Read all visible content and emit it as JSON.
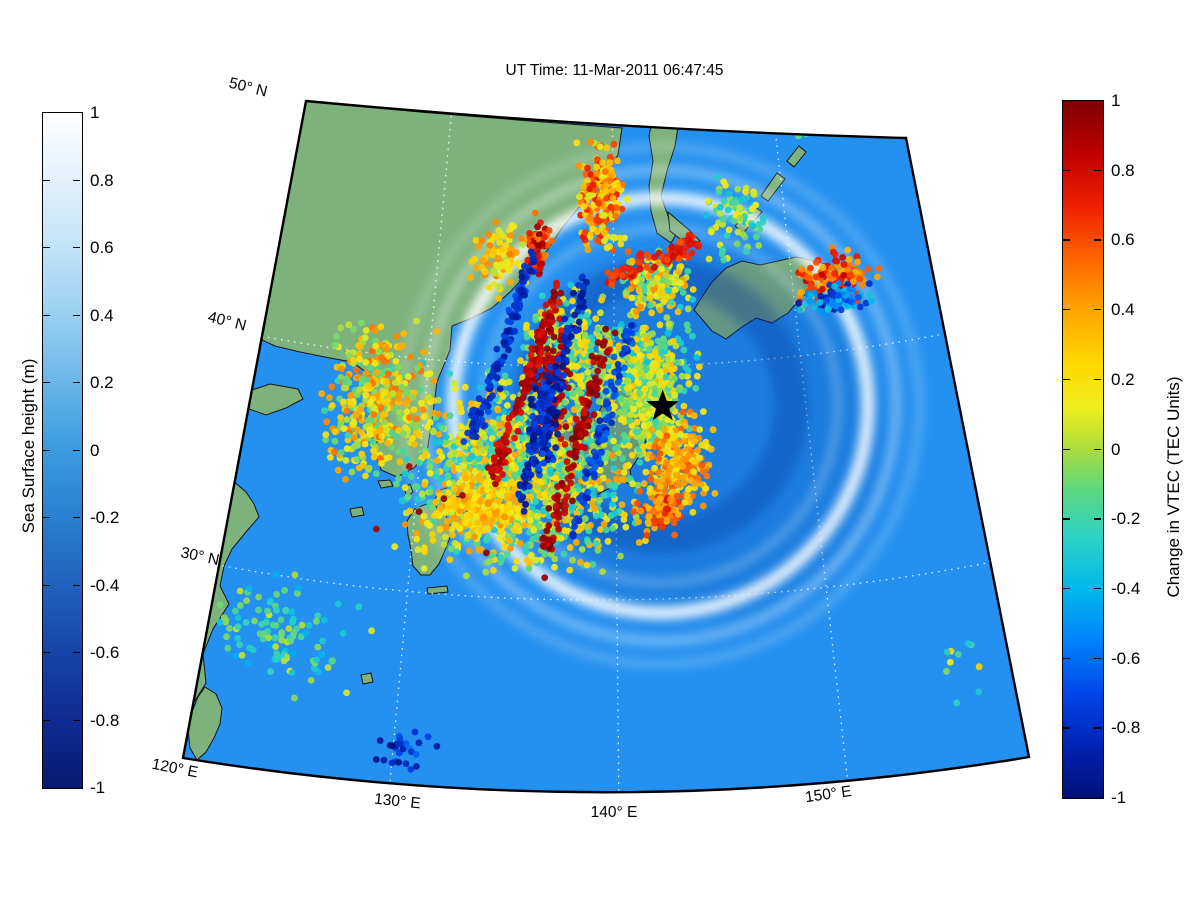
{
  "title": "UT Time: 11-Mar-2011 06:47:45",
  "colorbar_left": {
    "label": "Sea Surface height (m)",
    "tick_labels": [
      "1",
      "0.8",
      "0.6",
      "0.4",
      "0.2",
      "0",
      "-0.2",
      "-0.4",
      "-0.6",
      "-0.8",
      "-1"
    ],
    "range": [
      -1,
      1
    ],
    "colormap": "white-to-darkblue"
  },
  "colorbar_right": {
    "label": "Change in VTEC (TEC Units)",
    "tick_labels": [
      "1",
      "0.8",
      "0.6",
      "0.4",
      "0.2",
      "0",
      "-0.2",
      "-0.4",
      "-0.6",
      "-0.8",
      "-1"
    ],
    "range": [
      -1,
      1
    ],
    "colormap": "jet"
  },
  "map_axis_labels": {
    "lat": [
      "50° N",
      "40° N",
      "30° N"
    ],
    "lon": [
      "120° E",
      "130° E",
      "140° E",
      "150° E"
    ]
  },
  "chart_data": {
    "type": "scatter",
    "title": "UT Time: 11-Mar-2011 06:47:45",
    "description": "Map of Japan region: colored dots show change in VTEC (TEC units, jet colorbar); ocean shading shows sea surface height (m, blue colorbar) with an expanding circular tsunami wavefront; black star marks the epicenter offshore Tohoku.",
    "map_extent": {
      "lon": [
        120,
        157
      ],
      "lat": [
        21.7,
        50.3
      ]
    },
    "graticule": {
      "meridians_deg_e": [
        130,
        140,
        150
      ],
      "parallels_deg_n": [
        30,
        40
      ],
      "style": "dotted-white"
    },
    "epicenter": {
      "lon": 142.4,
      "lat": 38.3,
      "marker": "black-star"
    },
    "tsunami_rings": [
      {
        "radius_deg": 8.9,
        "type": "crest",
        "intensity": 0.9
      },
      {
        "radius_deg": 7.6,
        "type": "crest",
        "intensity": 0.3
      },
      {
        "radius_deg": 10.1,
        "type": "crest",
        "intensity": 0.38
      },
      {
        "radius_deg": 11.1,
        "type": "crest",
        "intensity": 0.26
      },
      {
        "radius_deg": 5.6,
        "type": "trough",
        "intensity": 0.3
      }
    ],
    "scatter_clusters": [
      {
        "name": "sakhalin-coast",
        "lon": 139.3,
        "lat": 47.3,
        "lon_spread": 1.1,
        "lat_spread": 1.7,
        "count": 240,
        "vtec": [
          0.05,
          0.75
        ]
      },
      {
        "name": "primorye-red",
        "lon": 135.6,
        "lat": 45.1,
        "lon_spread": 0.55,
        "lat_spread": 0.95,
        "count": 80,
        "vtec": [
          0.45,
          1.0
        ]
      },
      {
        "name": "ne-china-green",
        "lon": 133.5,
        "lat": 44.5,
        "lon_spread": 1.2,
        "lat_spread": 1.1,
        "count": 90,
        "vtec": [
          0.0,
          0.5
        ]
      },
      {
        "name": "japan-main-cloud",
        "lon": 135.3,
        "lat": 35.3,
        "lon_spread": 4.3,
        "lat_spread": 3.0,
        "count": 1500,
        "vtec": [
          -0.35,
          0.45
        ]
      },
      {
        "name": "korea",
        "lon": 127.5,
        "lat": 38.0,
        "lon_spread": 2.1,
        "lat_spread": 2.5,
        "count": 430,
        "vtec": [
          -0.2,
          0.55
        ]
      },
      {
        "name": "sea-of-japan-fill",
        "lon": 137.5,
        "lat": 40.5,
        "lon_spread": 2.0,
        "lat_spread": 2.0,
        "count": 340,
        "vtec": [
          -0.3,
          0.3
        ]
      },
      {
        "name": "tohoku-offshore",
        "lon": 141.5,
        "lat": 40.0,
        "lon_spread": 2.1,
        "lat_spread": 1.7,
        "count": 420,
        "vtec": [
          -0.35,
          0.35
        ]
      },
      {
        "name": "epicentral",
        "lon": 141.8,
        "lat": 37.8,
        "lon_spread": 1.2,
        "lat_spread": 1.2,
        "count": 210,
        "vtec": [
          -0.25,
          0.25
        ]
      },
      {
        "name": "east-yellow-arc",
        "lon": 143.2,
        "lat": 35.8,
        "lon_spread": 1.4,
        "lat_spread": 1.5,
        "count": 270,
        "vtec": [
          0.1,
          0.6
        ]
      },
      {
        "name": "boso-orange",
        "lon": 142.2,
        "lat": 33.8,
        "lon_spread": 0.9,
        "lat_spread": 0.8,
        "count": 90,
        "vtec": [
          0.3,
          0.75
        ]
      },
      {
        "name": "sw-honshu-yellow",
        "lon": 133.0,
        "lat": 33.8,
        "lon_spread": 1.8,
        "lat_spread": 1.0,
        "count": 240,
        "vtec": [
          0.1,
          0.45
        ]
      },
      {
        "name": "kuril-band-warm",
        "lon": 152.5,
        "lat": 43.1,
        "lon_spread": 1.9,
        "lat_spread": 0.8,
        "count": 130,
        "vtec": [
          0.3,
          0.85
        ]
      },
      {
        "name": "kuril-band-cool",
        "lon": 152.3,
        "lat": 42.2,
        "lon_spread": 1.6,
        "lat_spread": 0.55,
        "count": 85,
        "vtec": [
          -0.9,
          -0.3
        ]
      },
      {
        "name": "hokkaido-mixed",
        "lon": 142.5,
        "lat": 43.5,
        "lon_spread": 1.5,
        "lat_spread": 0.95,
        "count": 190,
        "vtec": [
          -0.3,
          0.5
        ]
      },
      {
        "name": "okhotsk-cyan",
        "lon": 147.0,
        "lat": 46.3,
        "lon_spread": 1.5,
        "lat_spread": 1.5,
        "count": 85,
        "vtec": [
          -0.35,
          0.2
        ]
      },
      {
        "name": "top-ne-cyan",
        "lon": 152.0,
        "lat": 49.8,
        "lon_spread": 1.0,
        "lat_spread": 0.45,
        "count": 20,
        "vtec": [
          -0.35,
          0.15
        ]
      },
      {
        "name": "ecs-cyan-trail",
        "lon": 124.5,
        "lat": 27.5,
        "lon_spread": 2.4,
        "lat_spread": 1.8,
        "count": 110,
        "vtec": [
          -0.45,
          0.1
        ]
      },
      {
        "name": "deep-blue-trail",
        "lon": 130.6,
        "lat": 23.2,
        "lon_spread": 1.0,
        "lat_spread": 0.7,
        "count": 28,
        "vtec": [
          -1.0,
          -0.6
        ]
      },
      {
        "name": "far-se-strays",
        "lon": 156.0,
        "lat": 26.0,
        "lon_spread": 1.2,
        "lat_spread": 1.6,
        "count": 10,
        "vtec": [
          -0.4,
          0.5
        ]
      },
      {
        "name": "maroon-core",
        "lon": 136.6,
        "lat": 39.3,
        "lon_spread": 0.8,
        "lat_spread": 2.1,
        "count": 140,
        "vtec": [
          0.75,
          1.0
        ]
      },
      {
        "name": "deepblue-core",
        "lon": 136.2,
        "lat": 37.5,
        "lon_spread": 0.6,
        "lat_spread": 2.0,
        "count": 120,
        "vtec": [
          -1.0,
          -0.65
        ]
      },
      {
        "name": "isolated-maroon",
        "lon": 134.0,
        "lat": 33.5,
        "lon_spread": 3.8,
        "lat_spread": 2.4,
        "count": 8,
        "vtec": [
          0.85,
          1.0
        ]
      }
    ],
    "wave_bands": [
      {
        "name": "blue-band-1",
        "from": {
          "lon": 135.5,
          "lat": 44.8
        },
        "to": {
          "lon": 132.4,
          "lat": 36.5
        },
        "vtec": -0.8,
        "count": 120,
        "width_deg": 0.35
      },
      {
        "name": "red-band-1",
        "from": {
          "lon": 136.9,
          "lat": 43.4
        },
        "to": {
          "lon": 133.7,
          "lat": 35.0
        },
        "vtec": 0.85,
        "count": 130,
        "width_deg": 0.35
      },
      {
        "name": "blue-band-2",
        "from": {
          "lon": 138.4,
          "lat": 43.8
        },
        "to": {
          "lon": 135.0,
          "lat": 33.7
        },
        "vtec": -0.85,
        "count": 120,
        "width_deg": 0.32
      },
      {
        "name": "red-band-2",
        "from": {
          "lon": 139.65,
          "lat": 41.6
        },
        "to": {
          "lon": 136.5,
          "lat": 32.1
        },
        "vtec": 0.9,
        "count": 120,
        "width_deg": 0.35
      },
      {
        "name": "blue-band-3",
        "from": {
          "lon": 141.0,
          "lat": 42.0
        },
        "to": {
          "lon": 137.8,
          "lat": 32.6
        },
        "vtec": -0.75,
        "count": 95,
        "width_deg": 0.3
      },
      {
        "name": "red-band-ne",
        "from": {
          "lon": 139.7,
          "lat": 43.75
        },
        "to": {
          "lon": 145.0,
          "lat": 45.3
        },
        "vtec": 0.7,
        "count": 80,
        "width_deg": 0.4
      }
    ]
  }
}
